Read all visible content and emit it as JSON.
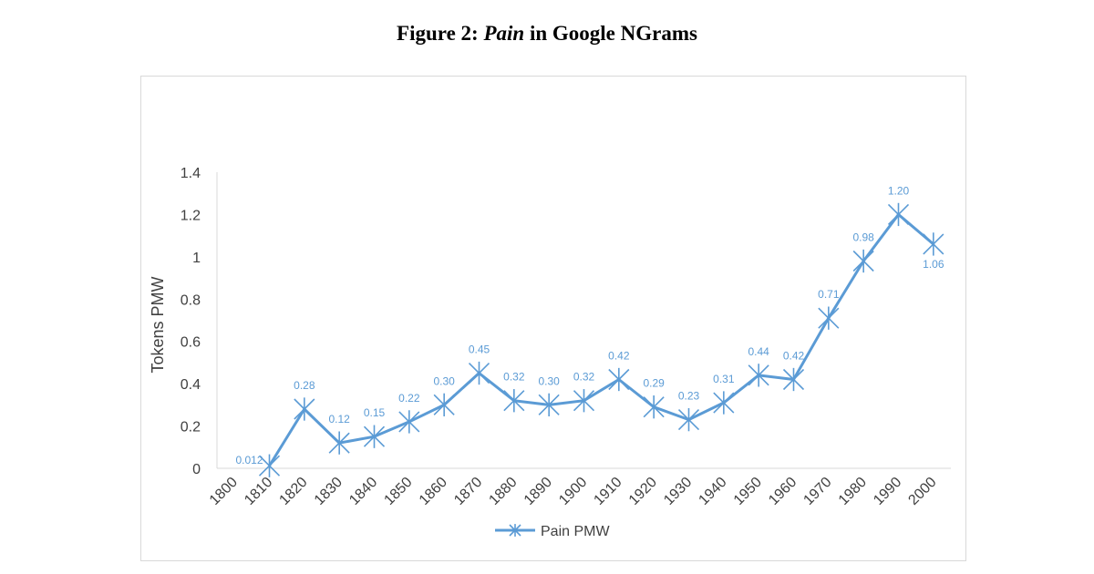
{
  "figure": {
    "title_prefix": "Figure 2: ",
    "title_italic": "Pain",
    "title_suffix": " in Google NGrams"
  },
  "chart_data": {
    "type": "line",
    "x": [
      "1800",
      "1810",
      "1820",
      "1830",
      "1840",
      "1850",
      "1860",
      "1870",
      "1880",
      "1890",
      "1900",
      "1910",
      "1920",
      "1930",
      "1940",
      "1950",
      "1960",
      "1970",
      "1980",
      "1990",
      "2000"
    ],
    "series": [
      {
        "name": "Pain PMW",
        "values": [
          null,
          0.012,
          0.28,
          0.12,
          0.15,
          0.22,
          0.3,
          0.45,
          0.32,
          0.3,
          0.32,
          0.42,
          0.29,
          0.23,
          0.31,
          0.44,
          0.42,
          0.71,
          0.98,
          1.2,
          1.06
        ],
        "data_labels": [
          "",
          "0.012",
          "0.28",
          "0.12",
          "0.15",
          "0.22",
          "0.30",
          "0.45",
          "0.32",
          "0.30",
          "0.32",
          "0.42",
          "0.29",
          "0.23",
          "0.31",
          "0.44",
          "0.42",
          "0.71",
          "0.98",
          "1.20",
          "1.06"
        ],
        "color": "#5b9bd5",
        "marker": "star"
      }
    ],
    "title": "",
    "xlabel": "",
    "ylabel": "Tokens PMW",
    "ylim": [
      0,
      1.4
    ],
    "yticks": [
      0,
      0.2,
      0.4,
      0.6,
      0.8,
      1,
      1.2,
      1.4
    ],
    "ytick_labels": [
      "0",
      "0.2",
      "0.4",
      "0.6",
      "0.8",
      "1",
      "1.2",
      "1.4"
    ],
    "grid": false,
    "legend_position": "bottom"
  }
}
